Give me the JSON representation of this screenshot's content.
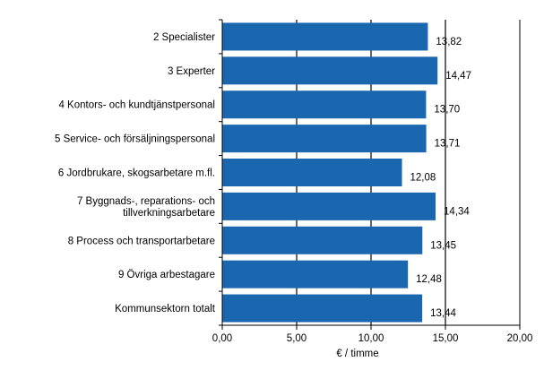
{
  "chart_data": {
    "type": "bar",
    "orientation": "horizontal",
    "categories": [
      [
        "2 Specialister"
      ],
      [
        "3 Experter"
      ],
      [
        "4 Kontors- och kundtjänstpersonal"
      ],
      [
        "5 Service- och försäljningspersonal"
      ],
      [
        "6 Jordbrukare, skogsarbetare m.fl."
      ],
      [
        "7 Byggnads-, reparations- och",
        "tillverkningsarbetare"
      ],
      [
        "8 Process och transportarbetare"
      ],
      [
        "9 Övriga arbestagare"
      ],
      [
        "Kommunsektorn totalt"
      ]
    ],
    "values": [
      13.82,
      14.47,
      13.7,
      13.71,
      12.08,
      14.34,
      13.45,
      12.48,
      13.44
    ],
    "data_labels": [
      "13,82",
      "14,47",
      "13,70",
      "13,71",
      "12,08",
      "14,34",
      "13,45",
      "12,48",
      "13,44"
    ],
    "xlabel": "€ / timme",
    "xlim": [
      0,
      20
    ],
    "xticks": [
      0,
      5,
      10,
      15,
      20
    ],
    "xtick_labels": [
      "0,00",
      "5,00",
      "10,00",
      "15,00",
      "20,00"
    ],
    "grid": "vertical",
    "legend": "none",
    "colors": {
      "bar": "#1a67b0",
      "grid": "#000000"
    }
  }
}
